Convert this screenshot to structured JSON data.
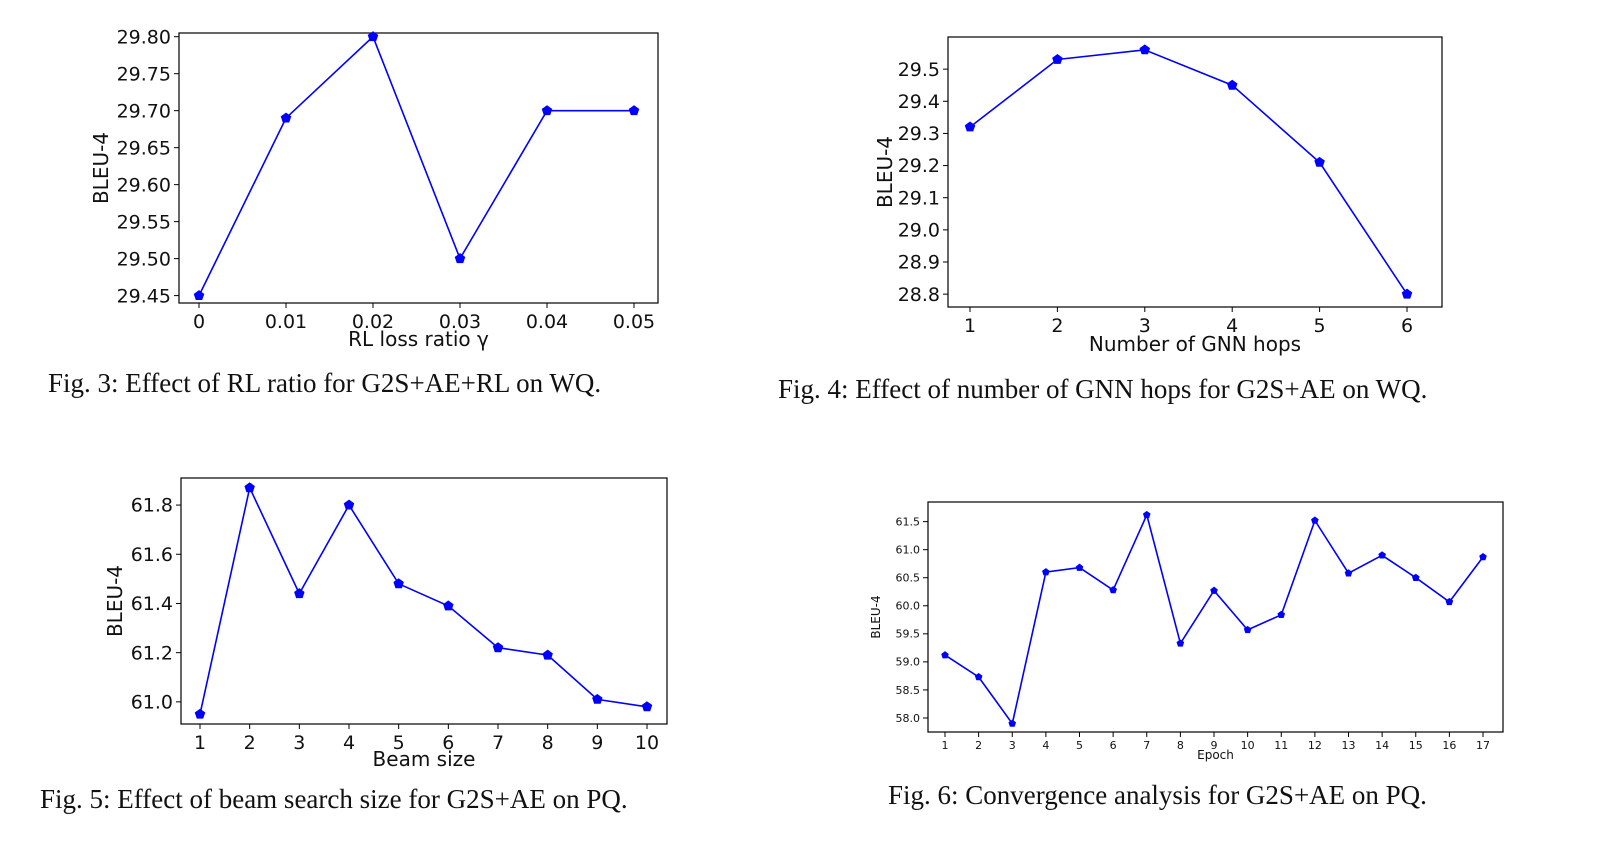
{
  "chart_data": [
    {
      "type": "line",
      "xlabel": "RL loss ratio γ",
      "ylabel": "BLEU-4",
      "categories": [
        "0",
        "0.01",
        "0.02",
        "0.03",
        "0.04",
        "0.05"
      ],
      "values": [
        29.45,
        29.69,
        29.8,
        29.5,
        29.7,
        29.7
      ],
      "yticks": [
        "29.45",
        "29.50",
        "29.55",
        "29.60",
        "29.65",
        "29.70",
        "29.75",
        "29.80"
      ],
      "ylim": [
        29.44,
        29.805
      ],
      "color": "#0000ff",
      "caption": "Fig. 3: Effect of RL ratio for G2S+AE+RL on WQ."
    },
    {
      "type": "line",
      "xlabel": "Number of GNN hops",
      "ylabel": "BLEU-4",
      "categories": [
        "1",
        "2",
        "3",
        "4",
        "5",
        "6"
      ],
      "values": [
        29.32,
        29.53,
        29.56,
        29.45,
        29.21,
        28.8
      ],
      "yticks": [
        "28.8",
        "28.9",
        "29.0",
        "29.1",
        "29.2",
        "29.3",
        "29.4",
        "29.5"
      ],
      "ylim": [
        28.76,
        29.6
      ],
      "color": "#0000ff",
      "caption": "Fig. 4: Effect of number of GNN hops for G2S+AE on WQ."
    },
    {
      "type": "line",
      "xlabel": "Beam size",
      "ylabel": "BLEU-4",
      "categories": [
        "1",
        "2",
        "3",
        "4",
        "5",
        "6",
        "7",
        "8",
        "9",
        "10"
      ],
      "values": [
        60.95,
        61.87,
        61.44,
        61.8,
        61.48,
        61.39,
        61.22,
        61.19,
        61.01,
        60.98
      ],
      "yticks": [
        "61.0",
        "61.2",
        "61.4",
        "61.6",
        "61.8"
      ],
      "ylim": [
        60.91,
        61.91
      ],
      "color": "#0000ff",
      "caption": "Fig. 5: Effect of beam search size for G2S+AE on PQ."
    },
    {
      "type": "line",
      "xlabel": "Epoch",
      "ylabel": "BLEU-4",
      "categories": [
        "1",
        "2",
        "3",
        "4",
        "5",
        "6",
        "7",
        "8",
        "9",
        "10",
        "11",
        "12",
        "13",
        "14",
        "15",
        "16",
        "17"
      ],
      "values": [
        59.12,
        58.73,
        57.9,
        60.6,
        60.68,
        60.28,
        61.62,
        59.33,
        60.27,
        59.57,
        59.84,
        61.52,
        60.58,
        60.9,
        60.5,
        60.07,
        60.87
      ],
      "yticks": [
        "58.0",
        "58.5",
        "59.0",
        "59.5",
        "60.0",
        "60.5",
        "61.0",
        "61.5"
      ],
      "ylim": [
        57.75,
        61.85
      ],
      "color": "#0000ff",
      "caption": "Fig. 6: Convergence analysis for G2S+AE on PQ."
    }
  ]
}
